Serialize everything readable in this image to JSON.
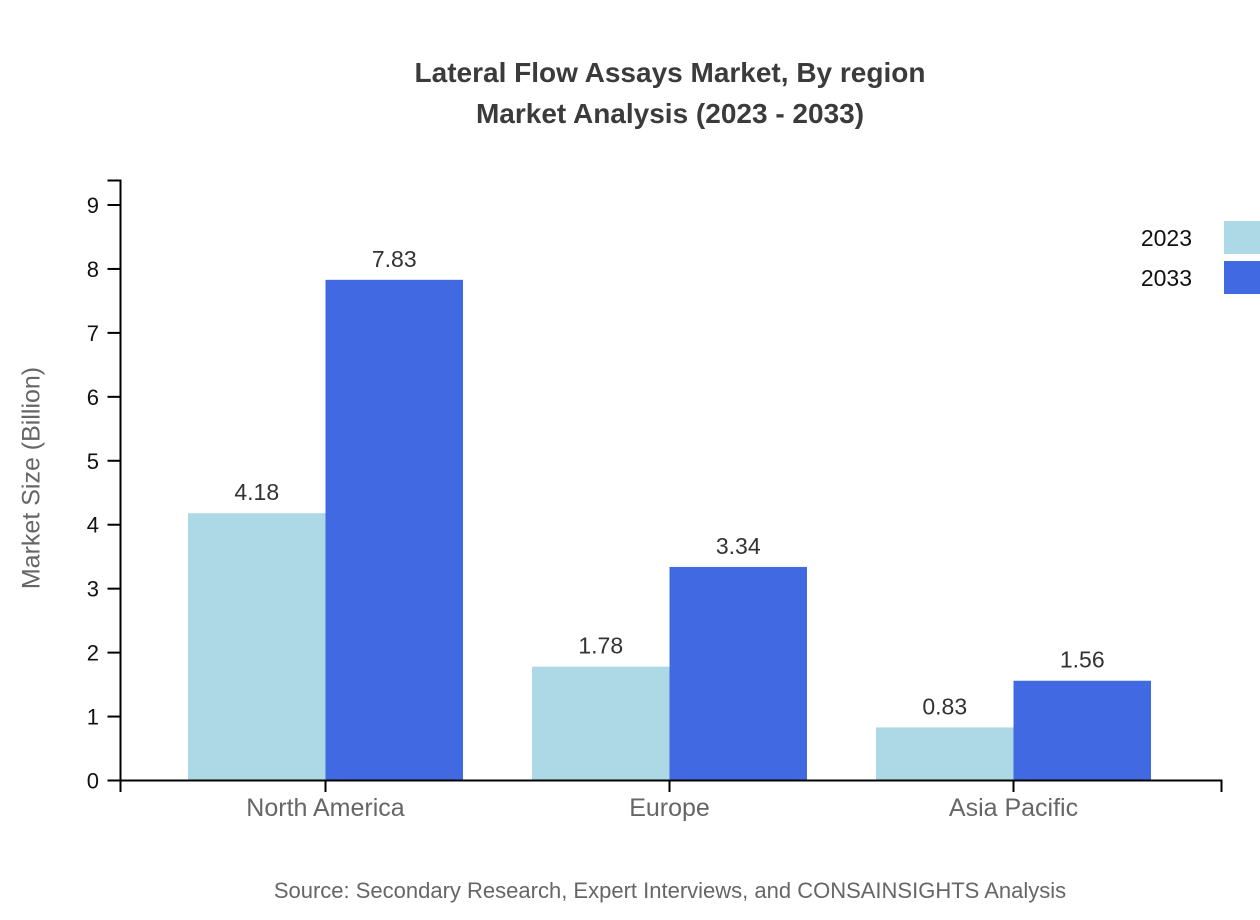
{
  "title": {
    "line1": "Lateral Flow Assays Market, By region",
    "line2": "Market Analysis (2023 - 2033)"
  },
  "source": "Source: Secondary Research, Expert Interviews, and CONSAINSIGHTS Analysis",
  "chart_data": {
    "type": "bar",
    "title": "Lateral Flow Assays Market, By region Market Analysis (2023 - 2033)",
    "categories": [
      "North America",
      "Europe",
      "Asia Pacific"
    ],
    "series": [
      {
        "name": "2023",
        "color": "#ADD8E6",
        "values": [
          4.18,
          1.78,
          0.83
        ]
      },
      {
        "name": "2033",
        "color": "#4169E1",
        "values": [
          7.83,
          3.34,
          1.56
        ]
      }
    ],
    "xlabel": "",
    "ylabel": "Market Size (Billion)",
    "ylim": [
      0,
      9
    ],
    "yticks": [
      0,
      1,
      2,
      3,
      4,
      5,
      6,
      7,
      8,
      9
    ],
    "grid": false,
    "legend_position": "top-right",
    "value_labels": true,
    "value_label_format": "2-decimals"
  },
  "colors": {
    "axis": "#000000",
    "title_text": "#3b3b3b",
    "tick_text": "#111111",
    "category_text": "#666666",
    "value_label_text": "#333333",
    "muted_text": "#666666"
  }
}
